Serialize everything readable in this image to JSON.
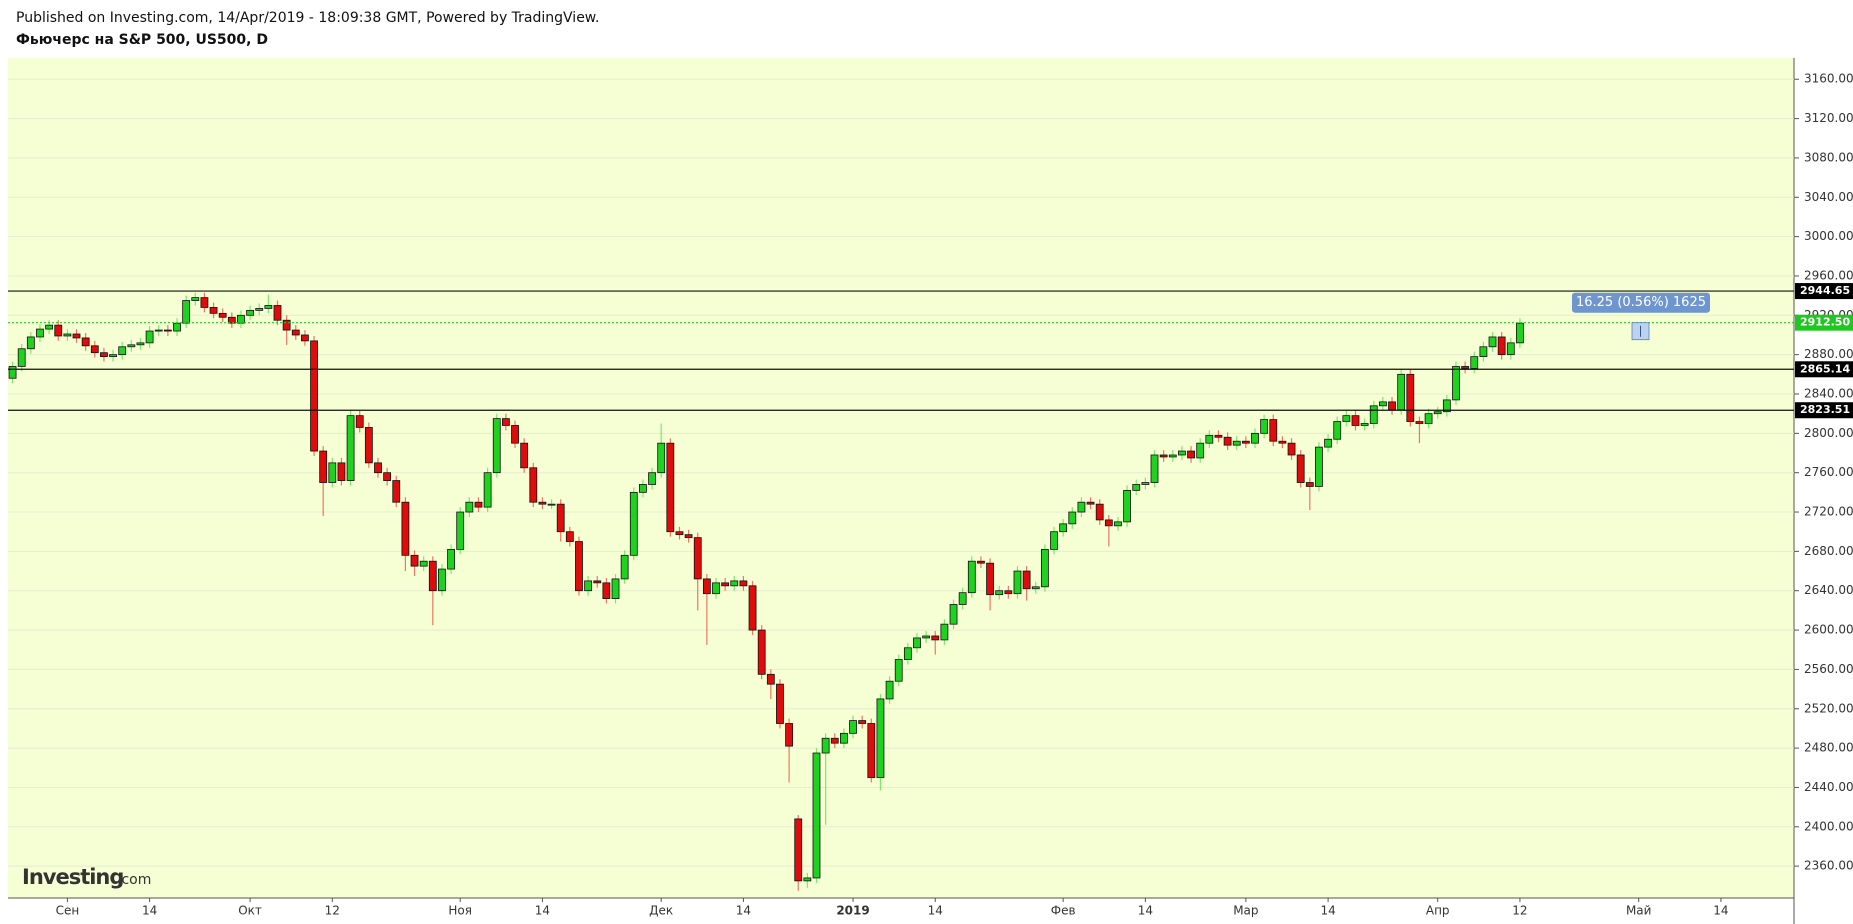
{
  "header": {
    "published": "Published on Investing.com, 14/Apr/2019 - 18:09:38 GMT, Powered by TradingView.",
    "symbol": "Фьючерс на S&P 500, US500, D"
  },
  "logo": [
    "Investing",
    ".com"
  ],
  "chart_data": {
    "type": "candlestick",
    "categories": [
      null,
      null,
      null,
      null,
      null,
      null,
      "Сен",
      null,
      null,
      null,
      null,
      null,
      null,
      null,
      null,
      "14",
      null,
      null,
      null,
      null,
      null,
      null,
      null,
      null,
      null,
      null,
      "Окт",
      null,
      null,
      null,
      null,
      null,
      null,
      null,
      null,
      "12",
      null,
      null,
      null,
      null,
      null,
      null,
      null,
      null,
      null,
      null,
      null,
      null,
      null,
      "Ноя",
      null,
      null,
      null,
      null,
      null,
      null,
      null,
      null,
      "14",
      null,
      null,
      null,
      null,
      null,
      null,
      null,
      null,
      null,
      null,
      null,
      null,
      "Дек",
      null,
      null,
      null,
      null,
      null,
      null,
      null,
      null,
      "14",
      null,
      null,
      null,
      null,
      null,
      null,
      null,
      null,
      null,
      null,
      null,
      "2019",
      null,
      null,
      null,
      null,
      null,
      null,
      null,
      null,
      "14",
      null,
      null,
      null,
      null,
      null,
      null,
      null,
      null,
      null,
      null,
      null,
      null,
      null,
      "Фев",
      null,
      null,
      null,
      null,
      null,
      null,
      null,
      null,
      "14",
      null,
      null,
      null,
      null,
      null,
      null,
      null,
      null,
      null,
      null,
      "Мар",
      null,
      null,
      null,
      null,
      null,
      null,
      null,
      null,
      "14",
      null,
      null,
      null,
      null,
      null,
      null,
      null,
      null,
      null,
      null,
      null,
      "Апр",
      null,
      null,
      null,
      null,
      null,
      null,
      null,
      null,
      "12",
      null,
      null,
      null,
      null,
      null,
      null,
      null,
      null,
      null,
      null,
      null,
      null,
      "Май",
      null,
      null,
      null,
      null,
      null,
      null,
      null,
      null,
      "14",
      null,
      null,
      null,
      null,
      null,
      null,
      null,
      null
    ],
    "open": [
      2856,
      2868,
      2886,
      2898,
      2906,
      2910,
      2899,
      2901,
      2897,
      2889,
      2882,
      2878,
      2880,
      2888,
      2890,
      2892,
      2904,
      2905,
      2904,
      2912,
      2935,
      2938,
      2928,
      2922,
      2918,
      2912,
      2920,
      2925,
      2927,
      2930,
      2915,
      2905,
      2900,
      2894,
      2782,
      2750,
      2770,
      2752,
      2818,
      2806,
      2770,
      2760,
      2752,
      2730,
      2676,
      2665,
      2670,
      2640,
      2662,
      2682,
      2720,
      2730,
      2725,
      2760,
      2815,
      2808,
      2790,
      2765,
      2730,
      2728,
      2728,
      2700,
      2690,
      2640,
      2650,
      2648,
      2632,
      2652,
      2676,
      2740,
      2748,
      2760,
      2790,
      2700,
      2697,
      2694,
      2652,
      2637,
      2648,
      2645,
      2650,
      2645,
      2600,
      2555,
      2545,
      2505,
      2408,
      2345,
      2348,
      2475,
      2490,
      2485,
      2495,
      2508,
      2505,
      2450,
      2530,
      2548,
      2570,
      2582,
      2592,
      2594,
      2590,
      2606,
      2626,
      2638,
      2670,
      2668,
      2636,
      2640,
      2637,
      2660,
      2642,
      2644,
      2682,
      2700,
      2708,
      2720,
      2730,
      2728,
      2712,
      2706,
      2710,
      2742,
      2748,
      2750,
      2778,
      2776,
      2778,
      2782,
      2775,
      2790,
      2798,
      2796,
      2788,
      2792,
      2790,
      2800,
      2814,
      2792,
      2790,
      2778,
      2750,
      2746,
      2786,
      2794,
      2812,
      2818,
      2808,
      2810,
      2828,
      2832,
      2824,
      2860,
      2812,
      2810,
      2820,
      2822,
      2834,
      2868,
      2866,
      2878,
      2888,
      2898,
      2880,
      2892,
      null,
      null,
      null,
      null,
      null,
      null,
      null,
      null,
      null,
      null,
      null,
      null,
      null,
      null,
      null,
      null,
      null,
      null,
      null,
      null,
      null,
      null,
      null,
      null,
      null,
      null,
      null,
      null,
      null,
      null
    ],
    "high": [
      2873,
      2891,
      2903,
      2911,
      2915,
      2915,
      2906,
      2906,
      2902,
      2894,
      2887,
      2885,
      2893,
      2895,
      2897,
      2909,
      2910,
      2910,
      2917,
      2940,
      2943,
      2943,
      2933,
      2927,
      2923,
      2925,
      2930,
      2932,
      2941,
      2935,
      2920,
      2910,
      2905,
      2899,
      2787,
      2775,
      2775,
      2823,
      2823,
      2811,
      2775,
      2765,
      2757,
      2735,
      2681,
      2675,
      2675,
      2667,
      2687,
      2725,
      2735,
      2735,
      2765,
      2820,
      2820,
      2813,
      2795,
      2770,
      2735,
      2733,
      2733,
      2705,
      2695,
      2655,
      2655,
      2653,
      2657,
      2681,
      2745,
      2753,
      2765,
      2810,
      2795,
      2705,
      2702,
      2699,
      2657,
      2653,
      2653,
      2655,
      2655,
      2650,
      2605,
      2560,
      2550,
      2510,
      2412,
      2353,
      2480,
      2495,
      2495,
      2500,
      2513,
      2513,
      2510,
      2535,
      2553,
      2575,
      2587,
      2597,
      2599,
      2599,
      2611,
      2631,
      2643,
      2675,
      2675,
      2673,
      2645,
      2645,
      2665,
      2665,
      2649,
      2687,
      2705,
      2713,
      2725,
      2735,
      2735,
      2733,
      2717,
      2715,
      2747,
      2753,
      2755,
      2783,
      2783,
      2783,
      2787,
      2787,
      2795,
      2803,
      2803,
      2801,
      2797,
      2797,
      2805,
      2819,
      2819,
      2797,
      2795,
      2783,
      2755,
      2791,
      2799,
      2817,
      2823,
      2823,
      2815,
      2833,
      2837,
      2837,
      2865,
      2865,
      2817,
      2825,
      2827,
      2839,
      2873,
      2873,
      2883,
      2893,
      2903,
      2903,
      2897,
      2917,
      null,
      null,
      null,
      null,
      null,
      null,
      null,
      null,
      null,
      null,
      null,
      null,
      null,
      null,
      null,
      null,
      null,
      null,
      null,
      null,
      null,
      null,
      null,
      null,
      null,
      null,
      null,
      null,
      null,
      null
    ],
    "low": [
      2851,
      2863,
      2881,
      2893,
      2901,
      2894,
      2894,
      2892,
      2884,
      2877,
      2873,
      2873,
      2875,
      2883,
      2885,
      2887,
      2899,
      2899,
      2899,
      2907,
      2930,
      2923,
      2917,
      2913,
      2907,
      2907,
      2915,
      2920,
      2922,
      2910,
      2890,
      2895,
      2889,
      2777,
      2716,
      2745,
      2747,
      2747,
      2801,
      2765,
      2755,
      2747,
      2725,
      2660,
      2655,
      2660,
      2605,
      2635,
      2657,
      2677,
      2715,
      2720,
      2720,
      2755,
      2803,
      2785,
      2760,
      2725,
      2723,
      2723,
      2690,
      2685,
      2635,
      2635,
      2643,
      2627,
      2627,
      2647,
      2671,
      2735,
      2743,
      2755,
      2695,
      2692,
      2689,
      2620,
      2585,
      2632,
      2640,
      2640,
      2640,
      2595,
      2550,
      2530,
      2500,
      2445,
      2335,
      2338,
      2343,
      2402,
      2480,
      2480,
      2490,
      2500,
      2445,
      2437,
      2525,
      2543,
      2565,
      2577,
      2587,
      2575,
      2585,
      2601,
      2621,
      2633,
      2663,
      2620,
      2631,
      2632,
      2632,
      2630,
      2637,
      2639,
      2677,
      2695,
      2703,
      2715,
      2723,
      2707,
      2685,
      2701,
      2705,
      2737,
      2743,
      2745,
      2771,
      2771,
      2773,
      2770,
      2770,
      2785,
      2791,
      2783,
      2783,
      2785,
      2785,
      2795,
      2787,
      2785,
      2773,
      2745,
      2722,
      2741,
      2781,
      2789,
      2807,
      2803,
      2803,
      2805,
      2823,
      2819,
      2819,
      2807,
      2790,
      2805,
      2815,
      2817,
      2829,
      2861,
      2861,
      2873,
      2883,
      2875,
      2875,
      2887,
      null,
      null,
      null,
      null,
      null,
      null,
      null,
      null,
      null,
      null,
      null,
      null,
      null,
      null,
      null,
      null,
      null,
      null,
      null,
      null,
      null,
      null,
      null,
      null,
      null,
      null,
      null,
      null,
      null,
      null
    ],
    "close": [
      2868,
      2886,
      2898,
      2906,
      2910,
      2899,
      2901,
      2897,
      2889,
      2882,
      2878,
      2880,
      2888,
      2890,
      2892,
      2904,
      2905,
      2904,
      2912,
      2935,
      2938,
      2928,
      2922,
      2918,
      2912,
      2920,
      2925,
      2927,
      2930,
      2915,
      2905,
      2900,
      2894,
      2782,
      2750,
      2770,
      2752,
      2818,
      2806,
      2770,
      2760,
      2752,
      2730,
      2676,
      2665,
      2670,
      2640,
      2662,
      2682,
      2720,
      2730,
      2725,
      2760,
      2815,
      2808,
      2790,
      2765,
      2730,
      2728,
      2728,
      2700,
      2690,
      2640,
      2650,
      2648,
      2632,
      2652,
      2676,
      2740,
      2748,
      2760,
      2790,
      2700,
      2697,
      2694,
      2652,
      2637,
      2648,
      2645,
      2650,
      2645,
      2600,
      2555,
      2545,
      2505,
      2482,
      2345,
      2348,
      2475,
      2490,
      2485,
      2495,
      2508,
      2505,
      2450,
      2530,
      2548,
      2570,
      2582,
      2592,
      2594,
      2590,
      2606,
      2626,
      2638,
      2670,
      2668,
      2636,
      2640,
      2637,
      2660,
      2642,
      2644,
      2682,
      2700,
      2708,
      2720,
      2730,
      2728,
      2712,
      2706,
      2710,
      2742,
      2748,
      2750,
      2778,
      2776,
      2778,
      2782,
      2775,
      2790,
      2798,
      2796,
      2788,
      2792,
      2790,
      2800,
      2814,
      2792,
      2790,
      2778,
      2750,
      2746,
      2786,
      2794,
      2812,
      2818,
      2808,
      2810,
      2828,
      2832,
      2824,
      2860,
      2812,
      2810,
      2820,
      2822,
      2834,
      2868,
      2866,
      2878,
      2888,
      2898,
      2880,
      2892,
      2912,
      null,
      null,
      null,
      null,
      null,
      null,
      null,
      null,
      null,
      null,
      null,
      null,
      null,
      null,
      null,
      null,
      null,
      null,
      null,
      null,
      null,
      null,
      null,
      null,
      null,
      null,
      null,
      null,
      null,
      null
    ],
    "xlim": [
      -0.5,
      195
    ],
    "ylim": [
      2327.6,
      3181.6
    ],
    "yticks": [
      {
        "value": 2360,
        "label": "2360.00"
      },
      {
        "value": 2400,
        "label": "2400.00"
      },
      {
        "value": 2440,
        "label": "2440.00"
      },
      {
        "value": 2480,
        "label": "2480.00"
      },
      {
        "value": 2520,
        "label": "2520.00"
      },
      {
        "value": 2560,
        "label": "2560.00"
      },
      {
        "value": 2600,
        "label": "2600.00"
      },
      {
        "value": 2640,
        "label": "2640.00"
      },
      {
        "value": 2680,
        "label": "2680.00"
      },
      {
        "value": 2720,
        "label": "2720.00"
      },
      {
        "value": 2760,
        "label": "2760.00"
      },
      {
        "value": 2800,
        "label": "2800.00"
      },
      {
        "value": 2840,
        "label": "2840.00"
      },
      {
        "value": 2880,
        "label": "2880.00"
      },
      {
        "value": 2920,
        "label": "2920.00"
      },
      {
        "value": 2960,
        "label": "2960.00"
      },
      {
        "value": 3000,
        "label": "3000.00"
      },
      {
        "value": 3040,
        "label": "3040.00"
      },
      {
        "value": 3080,
        "label": "3080.00"
      },
      {
        "value": 3120,
        "label": "3120.00"
      },
      {
        "value": 3160,
        "label": "3160.00"
      }
    ],
    "hlines": [
      2944.65,
      2865.14,
      2823.51
    ],
    "last_price": {
      "value": 2912.5,
      "label": "2912.50"
    },
    "annotation": "16.25 (0.56%) 1625",
    "grid": true,
    "colors": {
      "up": "#1fd21f",
      "down": "#e00b0b",
      "last": "#1ec81e",
      "annotation": "#6f95cf"
    }
  }
}
